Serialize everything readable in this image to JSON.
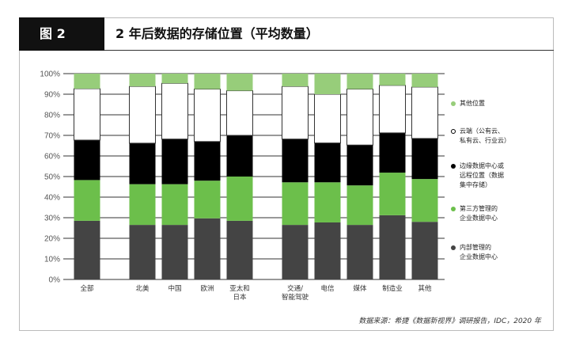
{
  "figure_label": "图 2",
  "title": "2 年后数据的存储位置（平均数量）",
  "source": "数据来源：希捷《数据新视界》调研报告，IDC，2020 年",
  "chart_data": {
    "type": "bar",
    "stacked": true,
    "title": "2 年后数据的存储位置（平均数量）",
    "ylim": [
      0,
      100
    ],
    "yticks": [
      "0%",
      "10%",
      "20%",
      "30%",
      "40%",
      "50%",
      "60%",
      "70%",
      "80%",
      "90%",
      "100%"
    ],
    "categories": [
      "全部",
      "北美",
      "中国",
      "欧洲",
      "亚太和\n日本",
      "交通/\n智能驾驶",
      "电信",
      "媒体",
      "制造业",
      "其他"
    ],
    "series": [
      {
        "name": "内部管理的\n企业数据中心",
        "color": "#444444",
        "values": [
          28.5,
          26.5,
          26.5,
          29.7,
          28.5,
          26.5,
          27.7,
          26.5,
          31.2,
          28.0
        ]
      },
      {
        "name": "第三方管理的\n企业数据中心",
        "color": "#6cbf4b",
        "values": [
          19.8,
          19.8,
          19.8,
          18.3,
          21.5,
          20.7,
          19.5,
          19.2,
          20.7,
          20.8
        ]
      },
      {
        "name": "边缘数据中心或\n远程位置（数据\n集中存储）",
        "color": "#000000",
        "values": [
          19.4,
          19.9,
          21.9,
          19.0,
          20.0,
          21.0,
          19.1,
          19.6,
          19.3,
          19.7
        ]
      },
      {
        "name": "云端（公有云、\n私有云、行业云）",
        "color": "#ffffff",
        "values": [
          25.0,
          27.6,
          27.1,
          25.5,
          21.7,
          25.6,
          23.7,
          27.2,
          23.1,
          25.0
        ]
      },
      {
        "name": "其他位置",
        "color": "#97cd7a",
        "values": [
          7.3,
          6.2,
          4.7,
          7.5,
          8.3,
          6.2,
          10.0,
          7.5,
          5.7,
          6.5
        ]
      }
    ],
    "legend": "right",
    "grid": true
  }
}
